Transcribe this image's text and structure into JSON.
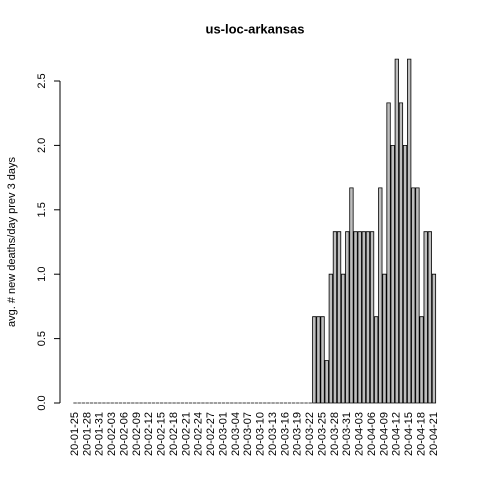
{
  "chart_data": {
    "type": "bar",
    "title": "us-loc-arkansas",
    "ylabel": "avg. # new deaths/day prev  3  days",
    "categories": [
      "20-01-25",
      null,
      null,
      "20-01-28",
      null,
      null,
      "20-01-31",
      null,
      null,
      "20-02-03",
      null,
      null,
      "20-02-06",
      null,
      null,
      "20-02-09",
      null,
      null,
      "20-02-12",
      null,
      null,
      "20-02-15",
      null,
      null,
      "20-02-18",
      null,
      null,
      "20-02-21",
      null,
      null,
      "20-02-24",
      null,
      null,
      "20-02-27",
      null,
      null,
      "20-03-01",
      null,
      null,
      "20-03-04",
      null,
      null,
      "20-03-07",
      null,
      null,
      "20-03-10",
      null,
      null,
      "20-03-13",
      null,
      null,
      "20-03-16",
      null,
      null,
      "20-03-19",
      null,
      null,
      "20-03-22",
      null,
      null,
      "20-03-25",
      null,
      null,
      "20-03-28",
      null,
      null,
      "20-03-31",
      null,
      null,
      "20-04-03",
      null,
      null,
      "20-04-06",
      null,
      null,
      "20-04-09",
      null,
      null,
      "20-04-12",
      null,
      null,
      "20-04-15",
      null,
      null,
      "20-04-18",
      null,
      null,
      "20-04-21"
    ],
    "values": [
      0,
      0,
      0,
      0,
      0,
      0,
      0,
      0,
      0,
      0,
      0,
      0,
      0,
      0,
      0,
      0,
      0,
      0,
      0,
      0,
      0,
      0,
      0,
      0,
      0,
      0,
      0,
      0,
      0,
      0,
      0,
      0,
      0,
      0,
      0,
      0,
      0,
      0,
      0,
      0,
      0,
      0,
      0,
      0,
      0,
      0,
      0,
      0,
      0,
      0,
      0,
      0,
      0,
      0,
      0,
      0,
      0,
      0,
      0.67,
      0.67,
      0.67,
      0.33,
      1.0,
      1.33,
      1.33,
      1.0,
      1.33,
      1.67,
      1.33,
      1.33,
      1.33,
      1.33,
      1.33,
      0.67,
      1.67,
      1.0,
      2.33,
      2.0,
      2.67,
      2.33,
      2.0,
      2.67,
      1.67,
      1.67,
      0.67,
      1.33,
      1.33,
      1.0
    ],
    "color": "#bebebe",
    "ylim": [
      0,
      2.5
    ],
    "yticks": [
      {
        "value": 0,
        "label": "0.0"
      },
      {
        "value": 0.5,
        "label": "0.5"
      },
      {
        "value": 1,
        "label": "1.0"
      },
      {
        "value": 1.5,
        "label": "1.5"
      },
      {
        "value": 2,
        "label": "2.0"
      },
      {
        "value": 2.5,
        "label": "2.5"
      }
    ]
  }
}
